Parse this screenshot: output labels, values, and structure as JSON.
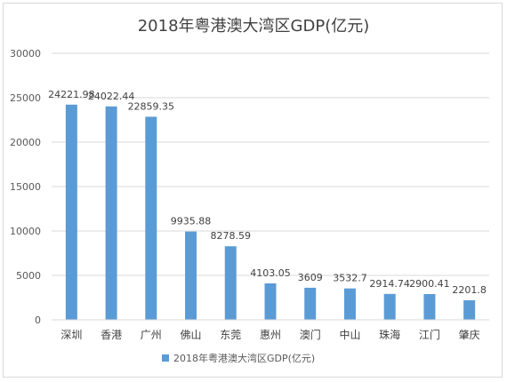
{
  "chart_data": {
    "type": "bar",
    "title": "2018年粤港澳大湾区GDP(亿元)",
    "categories": [
      "深圳",
      "香港",
      "广州",
      "佛山",
      "东莞",
      "惠州",
      "澳门",
      "中山",
      "珠海",
      "江门",
      "肇庆"
    ],
    "series": [
      {
        "name": "2018年粤港澳大湾区GDP(亿元)",
        "values": [
          24221.98,
          24022.44,
          22859.35,
          9935.88,
          8278.59,
          4103.05,
          3609,
          3532.7,
          2914.74,
          2900.41,
          2201.8
        ],
        "labels": [
          "24221.98",
          "24022.44",
          "22859.35",
          "9935.88",
          "8278.59",
          "4103.05",
          "3609",
          "3532.7",
          "2914.74",
          "2900.41",
          "2201.8"
        ],
        "color": "#5b9bd5"
      }
    ],
    "yticks": [
      "0",
      "5000",
      "10000",
      "15000",
      "20000",
      "25000",
      "30000"
    ],
    "ylim": [
      0,
      30000
    ],
    "grid": true,
    "legend_position": "bottom"
  }
}
